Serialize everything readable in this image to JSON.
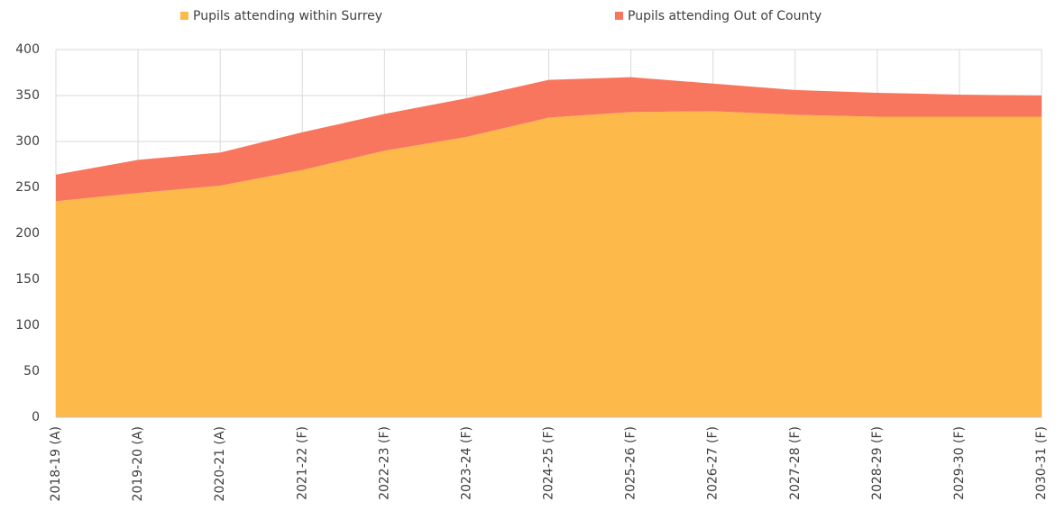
{
  "chart_data": {
    "type": "stacked-area",
    "categories": [
      "2018-19 (A)",
      "2019-20 (A)",
      "2020-21 (A)",
      "2021-22 (F)",
      "2022-23 (F)",
      "2023-24 (F)",
      "2024-25 (F)",
      "2025-26 (F)",
      "2026-27 (F)",
      "2027-28 (F)",
      "2028-29 (F)",
      "2029-30 (F)",
      "2030-31 (F)"
    ],
    "series": [
      {
        "name": "Pupils attending within Surrey",
        "color": "#fdb94a",
        "values": [
          235,
          244,
          252,
          269,
          290,
          305,
          326,
          332,
          333,
          329,
          327,
          327,
          327
        ]
      },
      {
        "name": "Pupils attending Out of County",
        "color": "#f9765e",
        "values": [
          29,
          36,
          36,
          41,
          40,
          42,
          41,
          38,
          30,
          27,
          26,
          24,
          23
        ]
      }
    ],
    "ylim": [
      0,
      400
    ],
    "yticks": [
      0,
      50,
      100,
      150,
      200,
      250,
      300,
      350,
      400
    ],
    "grid": true,
    "legend": "top"
  }
}
